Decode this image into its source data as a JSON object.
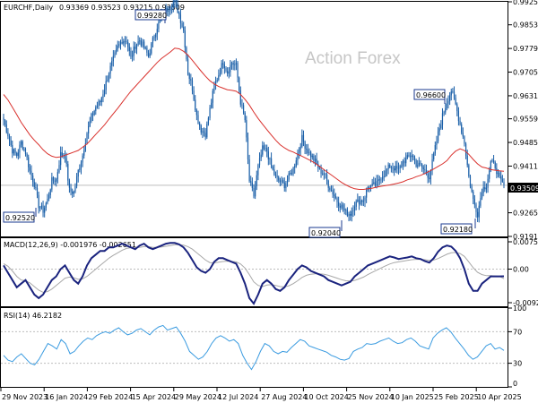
{
  "colors": {
    "frame": "#000000",
    "candle": "#1a5fa8",
    "ma": "#d9302c",
    "macd": "#1a237e",
    "signal": "#a8a8a8",
    "rsi": "#3a9be0",
    "box": "#1a3a8f",
    "grid": "#bdbdbd"
  },
  "header": {
    "symbol": "EURCHF,Daily",
    "ohlc": "0.93369 0.93523 0.93215 0.93509"
  },
  "watermark": "Action Forex",
  "price_annotations": {
    "p1": "0.99280",
    "p2": "0.92520",
    "p3": "0.92040",
    "p4": "0.96600",
    "p5": "0.92180",
    "current": "0.93509"
  },
  "macd_header": "MACD(12,26,9) -0.001976 -0.002651",
  "rsi_header": "RSI(14) 46.2182",
  "chart_data": [
    {
      "type": "candlestick",
      "title": "EURCHF,Daily",
      "ylim": [
        0.9191,
        0.9925
      ],
      "yticks": [
        0.9925,
        0.9853,
        0.9779,
        0.9705,
        0.9631,
        0.9559,
        0.9485,
        0.9411,
        0.9337,
        0.9265,
        0.9191
      ],
      "ytick_labels": [
        "0.99250",
        "0.98530",
        "0.97790",
        "0.97050",
        "0.96310",
        "0.95590",
        "0.94850",
        "0.94110",
        "0.93370",
        "0.92650",
        "0.91910"
      ],
      "x_labels": [
        "29 Nov 2023",
        "16 Jan 2024",
        "29 Feb 2024",
        "15 Apr 2024",
        "29 May 2024",
        "12 Jul 2024",
        "27 Aug 2024",
        "10 Oct 2024",
        "25 Nov 2024",
        "10 Jan 2025",
        "25 Feb 2025",
        "10 Apr 2025"
      ],
      "close_path": [
        0.9555,
        0.951,
        0.946,
        0.9445,
        0.9485,
        0.9455,
        0.9395,
        0.9355,
        0.9288,
        0.9272,
        0.9305,
        0.9365,
        0.937,
        0.9448,
        0.9445,
        0.9335,
        0.9328,
        0.9395,
        0.9445,
        0.9515,
        0.9565,
        0.9595,
        0.9612,
        0.9655,
        0.9705,
        0.9745,
        0.9782,
        0.9805,
        0.9805,
        0.9748,
        0.9788,
        0.9805,
        0.9782,
        0.9755,
        0.9805,
        0.9848,
        0.9882,
        0.9898,
        0.9912,
        0.9928,
        0.9885,
        0.9835,
        0.9705,
        0.9655,
        0.9568,
        0.9525,
        0.9512,
        0.9588,
        0.9662,
        0.9698,
        0.9738,
        0.9705,
        0.9735,
        0.9725,
        0.9612,
        0.9555,
        0.9365,
        0.9318,
        0.9408,
        0.9465,
        0.9458,
        0.9408,
        0.9375,
        0.9362,
        0.9352,
        0.9378,
        0.9402,
        0.9452,
        0.9498,
        0.9465,
        0.9445,
        0.9425,
        0.9398,
        0.9388,
        0.9352,
        0.9328,
        0.9302,
        0.9285,
        0.9265,
        0.9262,
        0.9292,
        0.9302,
        0.9305,
        0.9345,
        0.9348,
        0.9355,
        0.9378,
        0.9392,
        0.9412,
        0.9405,
        0.9398,
        0.9425,
        0.9435,
        0.9448,
        0.9418,
        0.9412,
        0.9395,
        0.9378,
        0.9445,
        0.9512,
        0.9568,
        0.9612,
        0.9648,
        0.9602,
        0.9542,
        0.9485,
        0.9378,
        0.9305,
        0.9262,
        0.9338,
        0.9352,
        0.9422,
        0.9412,
        0.9368,
        0.9351
      ],
      "ma_path": [
        0.9635,
        0.9618,
        0.9595,
        0.9572,
        0.9548,
        0.9528,
        0.9508,
        0.9492,
        0.9478,
        0.9462,
        0.945,
        0.9442,
        0.9438,
        0.944,
        0.9445,
        0.945,
        0.9455,
        0.946,
        0.947,
        0.948,
        0.9495,
        0.951,
        0.9525,
        0.954,
        0.9558,
        0.9575,
        0.9592,
        0.961,
        0.9628,
        0.9645,
        0.966,
        0.9675,
        0.969,
        0.9705,
        0.972,
        0.9735,
        0.9748,
        0.9758,
        0.9768,
        0.978,
        0.9778,
        0.977,
        0.9758,
        0.9742,
        0.9725,
        0.9708,
        0.9692,
        0.9678,
        0.9668,
        0.966,
        0.9655,
        0.965,
        0.9648,
        0.9645,
        0.9635,
        0.962,
        0.9602,
        0.958,
        0.956,
        0.9542,
        0.9525,
        0.9508,
        0.9492,
        0.9478,
        0.9468,
        0.946,
        0.9455,
        0.9448,
        0.9442,
        0.9435,
        0.9428,
        0.942,
        0.941,
        0.94,
        0.939,
        0.938,
        0.937,
        0.936,
        0.9352,
        0.9345,
        0.934,
        0.9338,
        0.9338,
        0.934,
        0.9342,
        0.9345,
        0.9348,
        0.935,
        0.9352,
        0.9355,
        0.9358,
        0.9362,
        0.9368,
        0.9372,
        0.9378,
        0.9382,
        0.9388,
        0.9395,
        0.9402,
        0.941,
        0.9418,
        0.9428,
        0.9445,
        0.9458,
        0.9465,
        0.946,
        0.9448,
        0.9432,
        0.9418,
        0.9408,
        0.9405,
        0.94,
        0.9398,
        0.9396,
        0.9395
      ]
    },
    {
      "type": "line",
      "title": "MACD(12,26,9) -0.001976 -0.002651",
      "ylim": [
        -0.009252,
        0.007526
      ],
      "ytick_labels": [
        "0.007526",
        "0.00",
        "-0.009252"
      ],
      "series": [
        {
          "name": "MACD",
          "values": [
            0.001,
            -0.001,
            -0.003,
            -0.005,
            -0.004,
            -0.003,
            -0.005,
            -0.007,
            -0.008,
            -0.007,
            -0.005,
            -0.003,
            -0.002,
            0.0,
            0.001,
            -0.001,
            -0.003,
            -0.004,
            -0.002,
            0.001,
            0.003,
            0.004,
            0.005,
            0.005,
            0.006,
            0.006,
            0.0065,
            0.007,
            0.0065,
            0.006,
            0.0055,
            0.0065,
            0.007,
            0.006,
            0.0055,
            0.006,
            0.0065,
            0.007,
            0.0072,
            0.0072,
            0.0068,
            0.006,
            0.0045,
            0.0025,
            0.0005,
            -0.0005,
            -0.001,
            0.0,
            0.002,
            0.003,
            0.003,
            0.0025,
            0.002,
            0.0015,
            -0.001,
            -0.004,
            -0.008,
            -0.0095,
            -0.007,
            -0.004,
            -0.003,
            -0.004,
            -0.0055,
            -0.006,
            -0.005,
            -0.003,
            -0.0015,
            0.0,
            0.001,
            0.0005,
            -0.0005,
            -0.001,
            -0.0015,
            -0.002,
            -0.003,
            -0.0035,
            -0.004,
            -0.0045,
            -0.004,
            -0.0035,
            -0.002,
            -0.001,
            0.0,
            0.001,
            0.0015,
            0.002,
            0.0025,
            0.003,
            0.0035,
            0.0032,
            0.0028,
            0.003,
            0.0032,
            0.0035,
            0.003,
            0.0028,
            0.0022,
            0.0018,
            0.003,
            0.0048,
            0.006,
            0.0065,
            0.0062,
            0.005,
            0.003,
            0.0,
            -0.004,
            -0.006,
            -0.006,
            -0.004,
            -0.003,
            -0.002,
            -0.002,
            -0.002,
            -0.00198
          ]
        },
        {
          "name": "Signal",
          "values": [
            0.0015,
            0.0008,
            -0.0005,
            -0.002,
            -0.003,
            -0.0032,
            -0.0038,
            -0.0048,
            -0.0058,
            -0.0064,
            -0.0062,
            -0.0055,
            -0.0045,
            -0.0035,
            -0.0025,
            -0.0022,
            -0.0024,
            -0.0028,
            -0.0027,
            -0.002,
            -0.001,
            0.0,
            0.001,
            0.002,
            0.003,
            0.0038,
            0.0045,
            0.0052,
            0.0057,
            0.0059,
            0.0059,
            0.006,
            0.0062,
            0.0062,
            0.006,
            0.006,
            0.0061,
            0.0063,
            0.0065,
            0.0067,
            0.0067,
            0.0066,
            0.0062,
            0.0055,
            0.0045,
            0.0035,
            0.0025,
            0.0018,
            0.0017,
            0.0019,
            0.0021,
            0.0022,
            0.0021,
            0.002,
            0.0014,
            0.0003,
            -0.0015,
            -0.0035,
            -0.0045,
            -0.0048,
            -0.0044,
            -0.0043,
            -0.0045,
            -0.0048,
            -0.0049,
            -0.0046,
            -0.004,
            -0.0032,
            -0.0023,
            -0.0017,
            -0.0014,
            -0.0013,
            -0.0013,
            -0.0014,
            -0.0017,
            -0.0021,
            -0.0025,
            -0.0029,
            -0.0032,
            -0.0033,
            -0.0031,
            -0.0027,
            -0.0022,
            -0.0015,
            -0.0009,
            -0.0003,
            0.0003,
            0.0009,
            0.0014,
            0.0018,
            0.002,
            0.0022,
            0.0024,
            0.0026,
            0.0027,
            0.0027,
            0.0026,
            0.0024,
            0.0025,
            0.0029,
            0.0035,
            0.0041,
            0.0045,
            0.0046,
            0.0043,
            0.0035,
            0.002,
            0.0004,
            -0.0009,
            -0.0015,
            -0.0018,
            -0.0018,
            -0.0019,
            -0.002,
            -0.00265
          ]
        }
      ]
    },
    {
      "type": "line",
      "title": "RSI(14) 46.2182",
      "ylim": [
        0,
        100
      ],
      "ytick_labels": [
        "100",
        "70",
        "30",
        "0"
      ],
      "series": [
        {
          "name": "RSI",
          "values": [
            40,
            34,
            32,
            38,
            42,
            36,
            30,
            28,
            35,
            45,
            55,
            52,
            48,
            60,
            55,
            42,
            45,
            52,
            58,
            62,
            60,
            65,
            68,
            70,
            68,
            72,
            75,
            70,
            66,
            68,
            72,
            74,
            70,
            66,
            72,
            76,
            78,
            72,
            74,
            76,
            68,
            58,
            45,
            40,
            35,
            38,
            45,
            55,
            62,
            65,
            62,
            58,
            60,
            55,
            40,
            30,
            22,
            32,
            45,
            55,
            52,
            45,
            42,
            45,
            44,
            50,
            55,
            60,
            58,
            52,
            50,
            48,
            46,
            44,
            40,
            38,
            35,
            34,
            36,
            45,
            48,
            50,
            55,
            54,
            55,
            58,
            60,
            62,
            58,
            55,
            56,
            60,
            62,
            58,
            52,
            50,
            48,
            62,
            68,
            72,
            75,
            70,
            62,
            55,
            48,
            40,
            35,
            38,
            45,
            52,
            55,
            48,
            50,
            46.2
          ]
        }
      ]
    }
  ]
}
